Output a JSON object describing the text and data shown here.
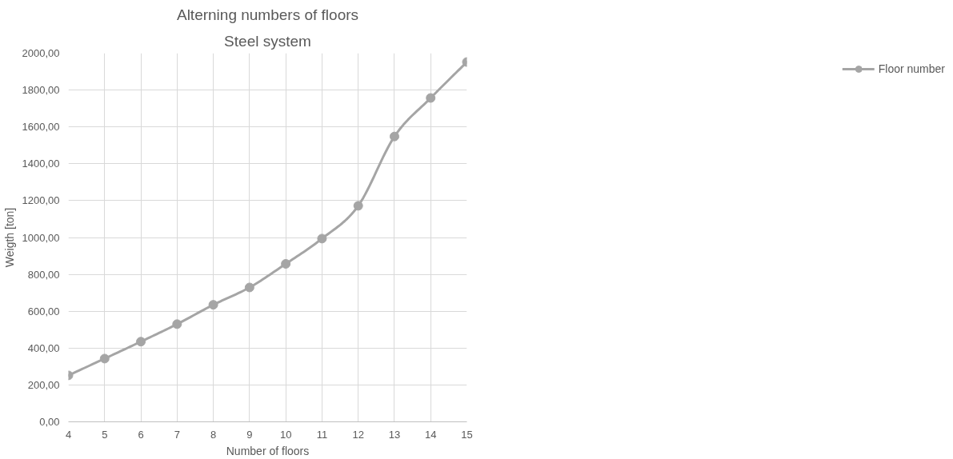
{
  "chart_data": {
    "type": "line",
    "title": "Alterning numbers of floors",
    "subtitle": "Steel system",
    "xlabel": "Number of floors",
    "ylabel": "Weigth [ton]",
    "x": [
      4,
      5,
      6,
      7,
      8,
      9,
      10,
      11,
      12,
      13,
      14,
      15
    ],
    "series": [
      {
        "name": "Floor number",
        "color": "#a5a5a5",
        "values": [
          252,
          343,
          435,
          530,
          635,
          729,
          857,
          994,
          1172,
          1548,
          1757,
          1952
        ]
      }
    ],
    "xlim": [
      4,
      15
    ],
    "xticks": [
      4,
      5,
      6,
      7,
      8,
      9,
      10,
      11,
      12,
      13,
      14,
      15
    ],
    "ylim": [
      0,
      2000
    ],
    "yticks": [
      {
        "value": 0,
        "label": "0,00"
      },
      {
        "value": 200,
        "label": "200,00"
      },
      {
        "value": 400,
        "label": "400,00"
      },
      {
        "value": 600,
        "label": "600,00"
      },
      {
        "value": 800,
        "label": "800,00"
      },
      {
        "value": 1000,
        "label": "1000,00"
      },
      {
        "value": 1200,
        "label": "1200,00"
      },
      {
        "value": 1400,
        "label": "1400,00"
      },
      {
        "value": 1600,
        "label": "1600,00"
      },
      {
        "value": 1800,
        "label": "1800,00"
      },
      {
        "value": 2000,
        "label": "2000,00"
      }
    ],
    "grid": true,
    "legend": "right",
    "marker": "circle",
    "line_style": "solid"
  }
}
